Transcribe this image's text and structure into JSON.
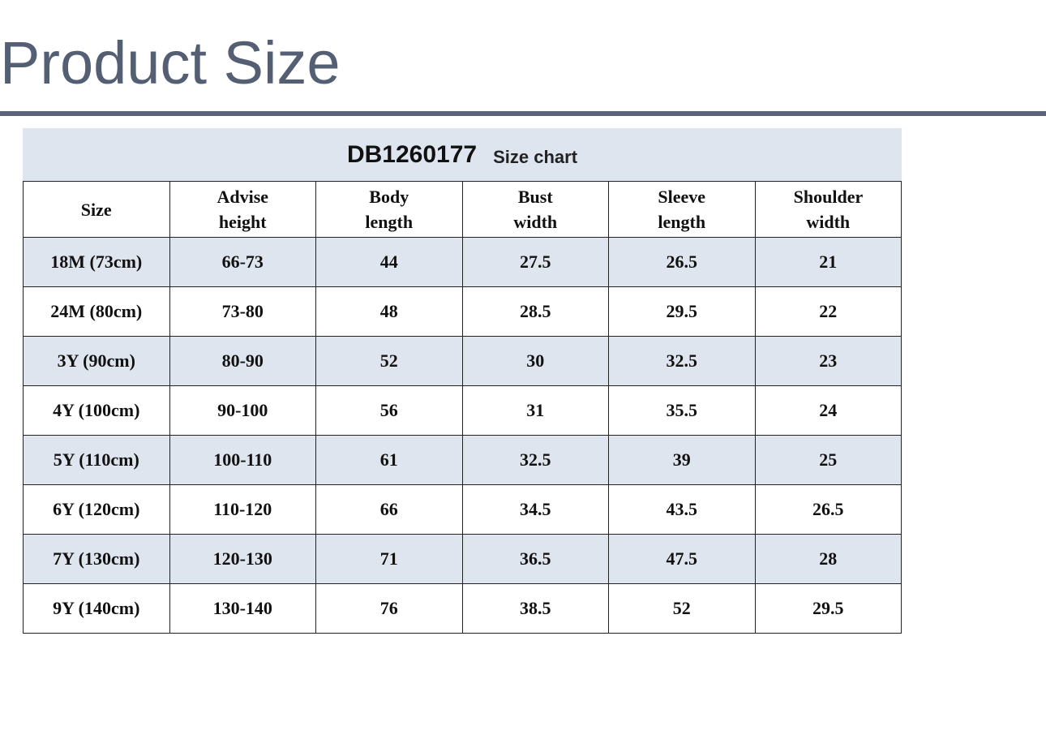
{
  "header": {
    "title": "Product Size"
  },
  "table": {
    "caption": {
      "code": "DB1260177",
      "label": "Size chart"
    },
    "columns": [
      "Size",
      "Advise height",
      "Body length",
      "Bust width",
      "Sleeve length",
      "Shoulder width"
    ],
    "rows": [
      [
        "18M (73cm)",
        "66-73",
        44,
        27.5,
        26.5,
        21
      ],
      [
        "24M (80cm)",
        "73-80",
        48,
        28.5,
        29.5,
        22
      ],
      [
        "3Y (90cm)",
        "80-90",
        52,
        30,
        32.5,
        23
      ],
      [
        "4Y (100cm)",
        "90-100",
        56,
        31,
        35.5,
        24
      ],
      [
        "5Y (110cm)",
        "100-110",
        61,
        32.5,
        39,
        25
      ],
      [
        "6Y (120cm)",
        "110-120",
        66,
        34.5,
        43.5,
        26.5
      ],
      [
        "7Y (130cm)",
        "120-130",
        71,
        36.5,
        47.5,
        28
      ],
      [
        "9Y (140cm)",
        "130-140",
        76,
        38.5,
        52,
        29.5
      ]
    ]
  }
}
